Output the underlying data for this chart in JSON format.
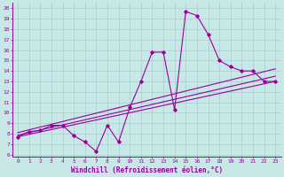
{
  "xlabel": "Windchill (Refroidissement éolien,°C)",
  "xlim": [
    -0.5,
    23.5
  ],
  "ylim": [
    5.8,
    20.5
  ],
  "xticks": [
    0,
    1,
    2,
    3,
    4,
    5,
    6,
    7,
    8,
    9,
    10,
    11,
    12,
    13,
    14,
    15,
    16,
    17,
    18,
    19,
    20,
    21,
    22,
    23
  ],
  "yticks": [
    6,
    7,
    8,
    9,
    10,
    11,
    12,
    13,
    14,
    15,
    16,
    17,
    18,
    19,
    20
  ],
  "color": "#990099",
  "bg_color": "#c8e8e8",
  "grid_color": "#a8cccc",
  "line1_x": [
    0,
    1,
    2,
    3,
    4,
    5,
    6,
    7,
    8,
    9,
    10,
    11,
    12,
    13,
    14,
    15,
    16,
    17,
    18,
    19,
    20,
    21,
    22,
    23
  ],
  "line1_y": [
    7.7,
    8.2,
    8.3,
    8.8,
    8.8,
    7.8,
    7.2,
    6.3,
    8.8,
    7.2,
    10.5,
    13.0,
    15.8,
    15.8,
    10.3,
    19.7,
    19.3,
    17.5,
    15.0,
    14.4,
    14.0,
    14.0,
    13.0,
    13.0
  ],
  "line2_x": [
    0,
    23
  ],
  "line2_y": [
    7.7,
    13.0
  ],
  "line3_x": [
    0,
    23
  ],
  "line3_y": [
    7.85,
    13.5
  ],
  "line4_x": [
    0,
    23
  ],
  "line4_y": [
    8.1,
    14.2
  ]
}
